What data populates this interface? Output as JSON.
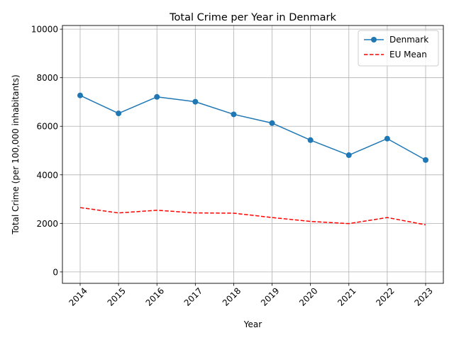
{
  "chart_data": {
    "type": "line",
    "title": "Total Crime per Year in Denmark",
    "xlabel": "Year",
    "ylabel": "Total Crime (per 100,000 inhabitants)",
    "categories": [
      "2014",
      "2015",
      "2016",
      "2017",
      "2018",
      "2019",
      "2020",
      "2021",
      "2022",
      "2023"
    ],
    "yticks": [
      "0",
      "2000",
      "4000",
      "6000",
      "8000",
      "10000"
    ],
    "ylim": [
      -470,
      10150
    ],
    "grid": true,
    "legend_position": "top-right",
    "series": [
      {
        "name": "Denmark",
        "color": "#1f77b4",
        "style": "solid-with-circle-markers",
        "values": [
          7270,
          6530,
          7210,
          7010,
          6490,
          6130,
          5430,
          4810,
          5490,
          4610
        ]
      },
      {
        "name": "EU Mean",
        "color": "#ff0000",
        "style": "dashed",
        "values": [
          2650,
          2430,
          2540,
          2430,
          2420,
          2240,
          2080,
          1990,
          2240,
          1940
        ]
      }
    ]
  }
}
